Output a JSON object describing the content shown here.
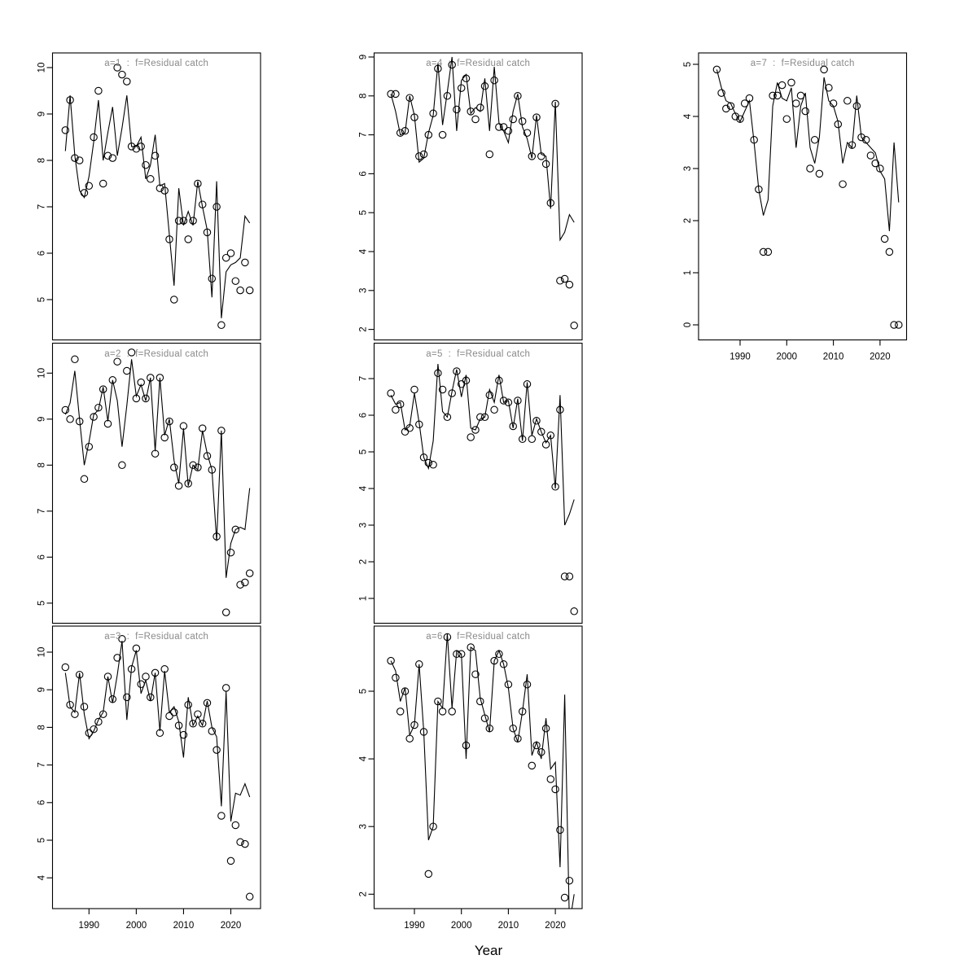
{
  "chart_data": {
    "type": "line",
    "xlabel": "Year",
    "x_ticks": [
      1990,
      2000,
      2010,
      2020
    ],
    "marker": "open-circle",
    "years": [
      1985,
      1986,
      1987,
      1988,
      1989,
      1990,
      1991,
      1992,
      1993,
      1994,
      1995,
      1996,
      1997,
      1998,
      1999,
      2000,
      2001,
      2002,
      2003,
      2004,
      2005,
      2006,
      2007,
      2008,
      2009,
      2010,
      2011,
      2012,
      2013,
      2014,
      2015,
      2016,
      2017,
      2018,
      2019,
      2020,
      2021,
      2022,
      2023,
      2024
    ],
    "panels": [
      {
        "id": "a1",
        "title": "a=1  :  f=Residual catch",
        "y_ticks": [
          5,
          6,
          7,
          8,
          9,
          10
        ],
        "ylim": [
          4.18,
          10.32
        ],
        "obs": [
          8.65,
          9.3,
          8.05,
          8.0,
          7.3,
          7.45,
          8.5,
          9.5,
          7.5,
          8.1,
          8.05,
          10.0,
          9.85,
          9.7,
          8.3,
          8.25,
          8.3,
          7.9,
          7.6,
          8.1,
          7.4,
          7.35,
          6.3,
          5.0,
          6.7,
          6.7,
          6.3,
          6.7,
          7.5,
          7.05,
          6.45,
          5.45,
          7.0,
          4.45,
          5.9,
          6.0,
          5.4,
          5.2,
          5.8,
          5.2
        ],
        "fit": [
          8.2,
          9.4,
          8.1,
          7.35,
          7.2,
          7.65,
          8.4,
          9.3,
          8.0,
          8.6,
          9.15,
          8.1,
          8.7,
          9.4,
          8.3,
          8.3,
          8.5,
          7.6,
          7.9,
          8.55,
          7.45,
          7.5,
          6.4,
          5.3,
          7.4,
          6.6,
          6.9,
          6.6,
          7.55,
          7.0,
          6.5,
          5.05,
          7.55,
          4.6,
          5.6,
          5.75,
          5.8,
          5.9,
          6.8,
          6.65
        ]
      },
      {
        "id": "a2",
        "title": "a=2  :  f=Residual catch",
        "y_ticks": [
          5,
          6,
          7,
          8,
          9,
          10
        ],
        "ylim": [
          4.56,
          10.64
        ],
        "obs": [
          9.2,
          9.0,
          10.3,
          8.95,
          7.7,
          8.4,
          9.05,
          9.25,
          9.65,
          8.9,
          9.85,
          10.25,
          8.0,
          10.05,
          10.45,
          9.45,
          9.8,
          9.45,
          9.9,
          8.25,
          9.9,
          8.6,
          8.95,
          7.95,
          7.55,
          8.85,
          7.6,
          8.0,
          7.95,
          8.8,
          8.2,
          7.9,
          6.45,
          8.75,
          4.8,
          6.1,
          6.6,
          5.4,
          5.45,
          5.65
        ],
        "fit": [
          9.1,
          9.35,
          10.05,
          9.0,
          8.0,
          8.5,
          9.1,
          9.2,
          9.7,
          8.95,
          9.85,
          9.4,
          8.4,
          9.3,
          10.3,
          9.5,
          9.75,
          9.4,
          9.9,
          8.3,
          9.9,
          8.65,
          9.0,
          8.1,
          7.6,
          8.8,
          7.55,
          8.0,
          7.9,
          8.75,
          8.25,
          7.9,
          6.35,
          8.75,
          5.55,
          6.3,
          6.6,
          6.65,
          6.6,
          7.5
        ]
      },
      {
        "id": "a3",
        "title": "a=3  :  f=Residual catch",
        "y_ticks": [
          4,
          5,
          6,
          7,
          8,
          9,
          10
        ],
        "ylim": [
          3.18,
          10.69
        ],
        "obs": [
          9.6,
          8.6,
          8.35,
          9.4,
          8.55,
          7.85,
          7.95,
          8.15,
          8.35,
          9.35,
          8.75,
          9.85,
          10.35,
          8.8,
          9.55,
          10.1,
          9.15,
          9.35,
          8.8,
          9.45,
          7.85,
          9.55,
          8.3,
          8.4,
          8.05,
          7.8,
          8.6,
          8.1,
          8.35,
          8.1,
          8.65,
          7.9,
          7.4,
          5.65,
          9.05,
          4.45,
          5.4,
          4.95,
          4.9,
          3.5
        ],
        "fit": [
          9.45,
          8.55,
          8.4,
          9.45,
          8.35,
          7.7,
          7.9,
          8.2,
          8.4,
          9.35,
          8.65,
          9.4,
          10.3,
          8.2,
          9.6,
          10.05,
          8.9,
          9.25,
          8.7,
          9.45,
          7.9,
          9.5,
          8.4,
          8.55,
          8.15,
          7.2,
          8.8,
          8.05,
          8.3,
          8.05,
          8.7,
          8.0,
          7.75,
          5.9,
          8.95,
          5.5,
          6.25,
          6.2,
          6.5,
          6.15
        ]
      },
      {
        "id": "a4",
        "title": "a=4  :  f=Residual catch",
        "y_ticks": [
          2,
          3,
          4,
          5,
          6,
          7,
          8,
          9
        ],
        "ylim": [
          1.7,
          9.1
        ],
        "obs": [
          8.05,
          8.05,
          7.05,
          7.1,
          7.95,
          7.45,
          6.45,
          6.5,
          7.0,
          7.55,
          8.7,
          7.0,
          8.0,
          8.8,
          7.65,
          8.2,
          8.45,
          7.6,
          7.4,
          7.7,
          8.25,
          6.5,
          8.4,
          7.2,
          7.2,
          7.1,
          7.4,
          8.0,
          7.35,
          7.05,
          6.45,
          7.45,
          6.45,
          6.25,
          5.25,
          7.8,
          3.25,
          3.3,
          3.15,
          2.1
        ],
        "fit": [
          8.05,
          7.6,
          7.0,
          7.05,
          8.0,
          7.5,
          6.3,
          6.4,
          7.05,
          7.5,
          8.85,
          7.25,
          8.1,
          9.0,
          7.1,
          8.4,
          8.55,
          7.55,
          7.7,
          7.6,
          8.45,
          7.1,
          8.75,
          7.3,
          7.1,
          6.8,
          7.6,
          8.05,
          7.2,
          6.9,
          6.4,
          7.5,
          6.5,
          6.45,
          5.1,
          7.85,
          4.3,
          4.5,
          4.95,
          4.75
        ]
      },
      {
        "id": "a5",
        "title": "a=5  :  f=Residual catch",
        "y_ticks": [
          1,
          2,
          3,
          4,
          5,
          6,
          7
        ],
        "ylim": [
          0.33,
          7.96
        ],
        "obs": [
          6.6,
          6.15,
          6.3,
          5.55,
          5.65,
          6.7,
          5.75,
          4.85,
          4.7,
          4.65,
          7.15,
          6.7,
          5.95,
          6.6,
          7.2,
          6.85,
          6.95,
          5.4,
          5.6,
          5.95,
          5.95,
          6.55,
          6.15,
          6.95,
          6.4,
          6.35,
          5.7,
          6.4,
          5.35,
          6.85,
          5.35,
          5.85,
          5.55,
          5.2,
          5.45,
          4.05,
          6.15,
          1.6,
          1.6,
          0.65
        ],
        "fit": [
          6.55,
          6.3,
          6.35,
          5.6,
          5.7,
          6.6,
          5.8,
          4.85,
          4.55,
          5.3,
          7.4,
          6.1,
          5.95,
          6.65,
          7.25,
          6.5,
          7.1,
          5.65,
          5.6,
          5.9,
          5.95,
          6.7,
          6.35,
          7.1,
          6.35,
          6.4,
          5.65,
          6.45,
          5.3,
          6.9,
          5.45,
          5.9,
          5.55,
          5.25,
          5.45,
          4.0,
          6.55,
          3.0,
          3.3,
          3.7
        ]
      },
      {
        "id": "a6",
        "title": "a=6  :  f=Residual catch",
        "y_ticks": [
          2,
          3,
          4,
          5
        ],
        "ylim": [
          1.79,
          5.97
        ],
        "obs": [
          5.45,
          5.2,
          4.7,
          5.0,
          4.3,
          4.5,
          5.4,
          4.4,
          2.3,
          3.0,
          4.85,
          4.7,
          5.8,
          4.7,
          5.55,
          5.55,
          4.2,
          5.65,
          5.25,
          4.85,
          4.6,
          4.45,
          5.45,
          5.55,
          5.4,
          5.1,
          4.45,
          4.3,
          4.7,
          5.1,
          3.9,
          4.2,
          4.1,
          4.45,
          3.7,
          3.55,
          2.95,
          1.95,
          2.2,
          null
        ],
        "fit": [
          5.45,
          5.3,
          4.85,
          5.05,
          4.35,
          4.5,
          5.4,
          4.4,
          2.8,
          3.0,
          4.85,
          4.75,
          5.85,
          4.75,
          5.6,
          5.55,
          4.0,
          5.65,
          5.6,
          4.9,
          4.65,
          4.4,
          5.45,
          5.6,
          5.4,
          5.05,
          4.45,
          4.25,
          4.7,
          5.25,
          4.05,
          4.25,
          4.0,
          4.6,
          3.85,
          3.95,
          2.4,
          4.95,
          1.55,
          2.0
        ]
      },
      {
        "id": "a7",
        "title": "a=7  :  f=Residual catch",
        "y_ticks": [
          0,
          1,
          2,
          3,
          4,
          5
        ],
        "ylim": [
          -0.28,
          5.22
        ],
        "obs": [
          4.9,
          4.45,
          4.15,
          4.2,
          4.0,
          3.95,
          4.25,
          4.35,
          3.55,
          2.6,
          1.4,
          1.4,
          4.4,
          4.4,
          4.6,
          3.95,
          4.65,
          4.25,
          4.4,
          4.1,
          3.0,
          3.55,
          2.9,
          4.9,
          4.55,
          4.25,
          3.85,
          2.7,
          4.3,
          3.45,
          4.2,
          3.6,
          3.55,
          3.25,
          3.1,
          3.0,
          1.65,
          1.4,
          0.0,
          0.0
        ],
        "fit": [
          4.9,
          4.55,
          4.3,
          4.25,
          4.05,
          3.9,
          4.1,
          4.3,
          3.5,
          2.6,
          2.1,
          2.4,
          4.2,
          4.65,
          4.35,
          4.3,
          4.55,
          3.4,
          4.2,
          4.45,
          3.4,
          3.1,
          3.6,
          4.75,
          4.3,
          4.2,
          3.9,
          3.1,
          3.5,
          3.4,
          4.4,
          3.6,
          3.5,
          3.4,
          3.3,
          2.95,
          2.8,
          1.8,
          3.5,
          2.35
        ]
      }
    ]
  }
}
